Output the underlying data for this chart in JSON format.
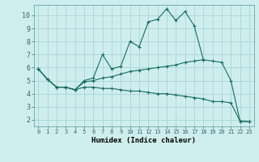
{
  "xlabel": "Humidex (Indice chaleur)",
  "bg_color": "#ceeeed",
  "grid_color": "#aad4d4",
  "line_color": "#1a6b60",
  "xlim": [
    -0.5,
    23.5
  ],
  "ylim": [
    1.5,
    10.8
  ],
  "xticks": [
    0,
    1,
    2,
    3,
    4,
    5,
    6,
    7,
    8,
    9,
    10,
    11,
    12,
    13,
    14,
    15,
    16,
    17,
    18,
    19,
    20,
    21,
    22,
    23
  ],
  "yticks": [
    2,
    3,
    4,
    5,
    6,
    7,
    8,
    9,
    10
  ],
  "line1_x": [
    0,
    1,
    2,
    3,
    4,
    5,
    6,
    7,
    8,
    9,
    10,
    11,
    12,
    13,
    14,
    15,
    16,
    17,
    18
  ],
  "line1_y": [
    5.9,
    5.1,
    4.5,
    4.5,
    4.3,
    5.0,
    5.2,
    7.0,
    5.9,
    6.1,
    8.0,
    7.6,
    9.5,
    9.7,
    10.5,
    9.6,
    10.3,
    9.2,
    6.6
  ],
  "line2_x": [
    0,
    1,
    2,
    3,
    4,
    5,
    6,
    7,
    8,
    9,
    10,
    11,
    12,
    13,
    14,
    15,
    16,
    17,
    18,
    19,
    20,
    21,
    22,
    23
  ],
  "line2_y": [
    5.9,
    5.1,
    4.5,
    4.5,
    4.3,
    4.9,
    5.0,
    5.2,
    5.3,
    5.5,
    5.7,
    5.8,
    5.9,
    6.0,
    6.1,
    6.2,
    6.4,
    6.5,
    6.6,
    6.5,
    6.4,
    5.0,
    1.9,
    1.85
  ],
  "line3_x": [
    0,
    1,
    2,
    3,
    4,
    5,
    6,
    7,
    8,
    9,
    10,
    11,
    12,
    13,
    14,
    15,
    16,
    17,
    18,
    19,
    20,
    21,
    22,
    23
  ],
  "line3_y": [
    5.9,
    5.1,
    4.5,
    4.5,
    4.3,
    4.5,
    4.5,
    4.4,
    4.4,
    4.3,
    4.2,
    4.2,
    4.1,
    4.0,
    4.0,
    3.9,
    3.8,
    3.7,
    3.6,
    3.4,
    3.4,
    3.3,
    1.9,
    1.85
  ]
}
